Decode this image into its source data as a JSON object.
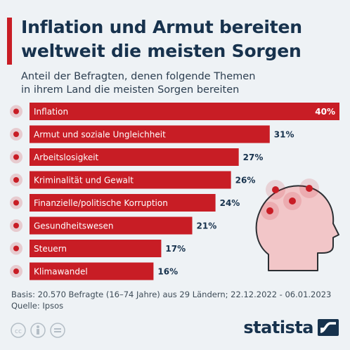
{
  "header": {
    "title_line1": "Inflation und Armut bereiten",
    "title_line2": "weltweit die meisten Sorgen",
    "subtitle_line1": "Anteil der Befragten, denen folgende Themen",
    "subtitle_line2": "in ihrem Land die meisten Sorgen bereiten"
  },
  "chart_data": {
    "type": "bar",
    "orientation": "horizontal",
    "categories": [
      "Inflation",
      "Armut und soziale Ungleichheit",
      "Arbeitslosigkeit",
      "Kriminalität und Gewalt",
      "Finanzielle/politische Korruption",
      "Gesundheitswesen",
      "Steuern",
      "Klimawandel"
    ],
    "values": [
      40,
      31,
      27,
      26,
      24,
      21,
      17,
      16
    ],
    "value_labels": [
      "40%",
      "31%",
      "27%",
      "26%",
      "24%",
      "21%",
      "17%",
      "16%"
    ],
    "unit": "%",
    "xlim": [
      0,
      40
    ],
    "grid": false,
    "colors": {
      "bar": "#c81d25",
      "value_text": "#17324d"
    }
  },
  "footer": {
    "basis": "Basis: 20.570 Befragte (16–74 Jahre) aus 29 Ländern; 22.12.2022 - 06.01.2023",
    "source": "Quelle: Ipsos"
  },
  "brand": {
    "name": "statista"
  },
  "icons": [
    "creative-commons-icon",
    "attribution-icon",
    "no-derivatives-icon",
    "head-illustration-icon",
    "statista-logo-icon"
  ]
}
